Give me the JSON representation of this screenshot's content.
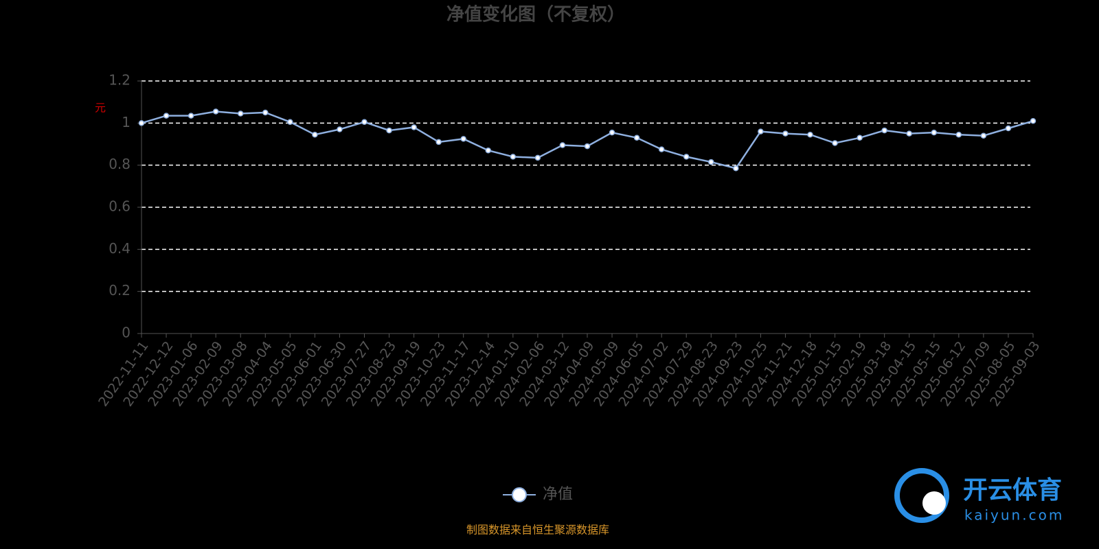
{
  "chart_data": {
    "type": "line",
    "title": "净值变化图（不复权）",
    "y_label": "元",
    "categories": [
      "2022-11-11",
      "2022-12-12",
      "2023-01-06",
      "2023-02-09",
      "2023-03-08",
      "2023-04-04",
      "2023-05-05",
      "2023-06-01",
      "2023-06-30",
      "2023-07-27",
      "2023-08-23",
      "2023-09-19",
      "2023-10-23",
      "2023-11-17",
      "2023-12-14",
      "2024-01-10",
      "2024-02-06",
      "2024-03-12",
      "2024-04-09",
      "2024-05-09",
      "2024-06-05",
      "2024-07-02",
      "2024-07-29",
      "2024-08-23",
      "2024-09-23",
      "2024-10-25",
      "2024-11-21",
      "2024-12-18",
      "2025-01-15",
      "2025-02-19",
      "2025-03-18",
      "2025-04-15",
      "2025-05-15",
      "2025-06-12",
      "2025-07-09",
      "2025-08-05",
      "2025-09-03"
    ],
    "series": [
      {
        "name": "净值",
        "color": "#8fb0e0",
        "values": [
          1.0,
          1.035,
          1.035,
          1.055,
          1.045,
          1.05,
          1.005,
          0.945,
          0.97,
          1.005,
          0.965,
          0.98,
          0.91,
          0.925,
          0.87,
          0.84,
          0.835,
          0.895,
          0.89,
          0.955,
          0.93,
          0.875,
          0.84,
          0.815,
          0.785,
          0.96,
          0.95,
          0.945,
          0.905,
          0.93,
          0.965,
          0.95,
          0.955,
          0.945,
          0.94,
          0.975,
          1.01
        ]
      }
    ],
    "ylim": [
      0,
      1.2
    ],
    "yticks": [
      0,
      0.2,
      0.4,
      0.6,
      0.8,
      1,
      1.2
    ],
    "grid": true,
    "source": "制图数据来自恒生聚源数据库",
    "watermark": {
      "brand": "开云体育",
      "url": "kaiyun.com"
    }
  }
}
